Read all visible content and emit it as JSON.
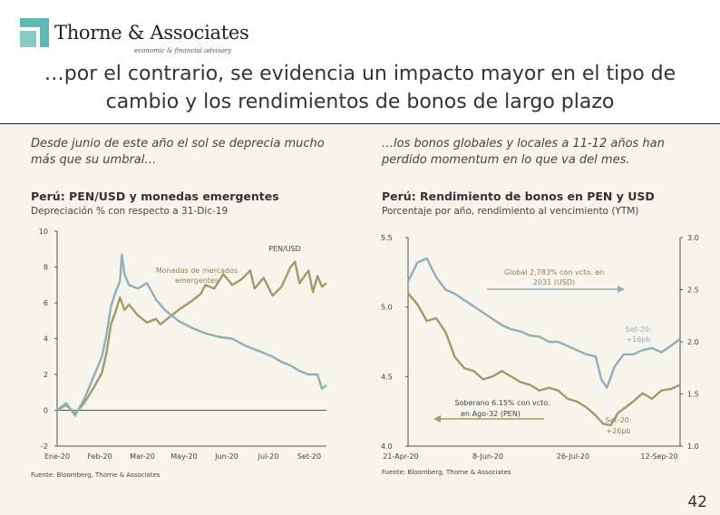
{
  "header": {
    "logo_name": "Thorne & Associates",
    "logo_tagline": "economic & financial advisory",
    "title_line1": "…por el contrario, se evidencia un impacto mayor en el tipo de",
    "title_line2": "cambio y los rendimientos de bonos de largo plazo"
  },
  "left": {
    "lead": "Desde junio de este año el sol se deprecia mucho más que su umbral…",
    "chart_title": "Perú: PEN/USD y monedas emergentes",
    "chart_subtitle": "Depreciación % con respecto a 31-Dic-19",
    "source": "Fuente: Bloomberg, Thorne & Associates"
  },
  "right": {
    "lead": "…los bonos globales y locales a 11-12 años han perdido momentum en lo que va del mes.",
    "chart_title": "Perú: Rendimiento de bonos en PEN y USD",
    "chart_subtitle": "Porcentaje por año, rendimiento al vencimiento (YTM)",
    "source": "Fuente: Bloomberg, Thorne & Associates"
  },
  "page_number": "42",
  "colors": {
    "olive": "#a39a6b",
    "steel": "#8fb0b8",
    "logo": "#5fb8b4"
  },
  "chart_data": [
    {
      "type": "line",
      "title": "Perú: PEN/USD y monedas emergentes",
      "subtitle": "Depreciación % con respecto a 31-Dic-19",
      "ylim": [
        -2,
        10
      ],
      "yticks": [
        -2,
        0,
        2,
        4,
        6,
        8,
        10
      ],
      "xticks": [
        "Ene-20",
        "Feb-20",
        "Mar-20",
        "May-20",
        "Jun-20",
        "Jul-20",
        "Set-20"
      ],
      "xrange_days": [
        0,
        300
      ],
      "series": [
        {
          "name": "PEN/USD",
          "color": "#a39a6b",
          "points": [
            [
              0,
              0
            ],
            [
              10,
              0.3
            ],
            [
              20,
              -0.2
            ],
            [
              30,
              0.4
            ],
            [
              40,
              1.2
            ],
            [
              50,
              2.1
            ],
            [
              55,
              3.2
            ],
            [
              60,
              4.8
            ],
            [
              65,
              5.5
            ],
            [
              70,
              6.3
            ],
            [
              75,
              5.6
            ],
            [
              80,
              5.9
            ],
            [
              90,
              5.3
            ],
            [
              100,
              4.9
            ],
            [
              110,
              5.1
            ],
            [
              115,
              4.8
            ],
            [
              120,
              5.0
            ],
            [
              135,
              5.6
            ],
            [
              150,
              6.1
            ],
            [
              160,
              6.5
            ],
            [
              165,
              7.0
            ],
            [
              175,
              6.8
            ],
            [
              185,
              7.6
            ],
            [
              195,
              7.0
            ],
            [
              205,
              7.3
            ],
            [
              215,
              7.8
            ],
            [
              220,
              6.8
            ],
            [
              230,
              7.4
            ],
            [
              240,
              6.4
            ],
            [
              250,
              6.9
            ],
            [
              260,
              8.0
            ],
            [
              265,
              8.3
            ],
            [
              270,
              7.1
            ],
            [
              280,
              7.8
            ],
            [
              285,
              6.6
            ],
            [
              290,
              7.5
            ],
            [
              295,
              6.9
            ],
            [
              300,
              7.1
            ]
          ]
        },
        {
          "name": "Monedas de mercados emergentes",
          "color": "#8fb0b8",
          "points": [
            [
              0,
              0
            ],
            [
              10,
              0.4
            ],
            [
              20,
              -0.3
            ],
            [
              30,
              0.6
            ],
            [
              40,
              1.8
            ],
            [
              50,
              3.0
            ],
            [
              55,
              4.2
            ],
            [
              60,
              5.8
            ],
            [
              65,
              6.6
            ],
            [
              70,
              7.2
            ],
            [
              72,
              8.7
            ],
            [
              75,
              7.6
            ],
            [
              80,
              7.0
            ],
            [
              90,
              6.8
            ],
            [
              100,
              7.1
            ],
            [
              110,
              6.2
            ],
            [
              120,
              5.6
            ],
            [
              135,
              5.0
            ],
            [
              150,
              4.6
            ],
            [
              165,
              4.3
            ],
            [
              180,
              4.1
            ],
            [
              195,
              4.0
            ],
            [
              210,
              3.6
            ],
            [
              225,
              3.3
            ],
            [
              240,
              3.0
            ],
            [
              250,
              2.7
            ],
            [
              260,
              2.5
            ],
            [
              270,
              2.2
            ],
            [
              280,
              2.0
            ],
            [
              290,
              2.0
            ],
            [
              295,
              1.2
            ],
            [
              300,
              1.4
            ]
          ]
        }
      ]
    },
    {
      "type": "line",
      "title": "Perú: Rendimiento de bonos en PEN y USD",
      "subtitle": "Porcentaje por año, rendimiento al vencimiento (YTM)",
      "y_left": {
        "ylim": [
          4.0,
          5.5
        ],
        "ticks": [
          4.0,
          4.5,
          5.0,
          5.5
        ]
      },
      "y_right": {
        "ylim": [
          1.0,
          3.0
        ],
        "ticks": [
          1.0,
          1.5,
          2.0,
          2.5,
          3.0
        ]
      },
      "xticks": [
        "21-Apr-20",
        "8-Jun-20",
        "26-Jul-20",
        "12-Sep-20"
      ],
      "xrange_days": [
        0,
        145
      ],
      "annotations": [
        "Global 2,783% con vcto. en 2031 (USD)",
        "Set-20: +16pb",
        "Soberano 6.15% con vcto. en Ago-32 (PEN)",
        "Set-20: +26pb"
      ],
      "series": [
        {
          "name": "Global 2,783% con vcto. en 2031 (USD)",
          "axis": "right",
          "color": "#8fb0b8",
          "points": [
            [
              0,
              2.58
            ],
            [
              5,
              2.76
            ],
            [
              10,
              2.8
            ],
            [
              15,
              2.62
            ],
            [
              20,
              2.5
            ],
            [
              25,
              2.46
            ],
            [
              30,
              2.4
            ],
            [
              35,
              2.34
            ],
            [
              40,
              2.28
            ],
            [
              45,
              2.22
            ],
            [
              50,
              2.16
            ],
            [
              55,
              2.12
            ],
            [
              60,
              2.1
            ],
            [
              65,
              2.06
            ],
            [
              70,
              2.05
            ],
            [
              75,
              2.0
            ],
            [
              80,
              2.0
            ],
            [
              85,
              1.96
            ],
            [
              90,
              1.92
            ],
            [
              95,
              1.88
            ],
            [
              100,
              1.86
            ],
            [
              103,
              1.64
            ],
            [
              106,
              1.56
            ],
            [
              110,
              1.76
            ],
            [
              115,
              1.88
            ],
            [
              120,
              1.88
            ],
            [
              125,
              1.92
            ],
            [
              130,
              1.94
            ],
            [
              135,
              1.9
            ],
            [
              140,
              1.96
            ],
            [
              145,
              2.03
            ]
          ]
        },
        {
          "name": "Soberano 6.15% con vcto. en Ago-32 (PEN)",
          "axis": "left",
          "color": "#a39a6b",
          "points": [
            [
              0,
              5.1
            ],
            [
              5,
              5.02
            ],
            [
              10,
              4.9
            ],
            [
              15,
              4.92
            ],
            [
              20,
              4.82
            ],
            [
              25,
              4.64
            ],
            [
              30,
              4.56
            ],
            [
              35,
              4.54
            ],
            [
              40,
              4.48
            ],
            [
              45,
              4.5
            ],
            [
              50,
              4.54
            ],
            [
              55,
              4.5
            ],
            [
              60,
              4.46
            ],
            [
              65,
              4.44
            ],
            [
              70,
              4.4
            ],
            [
              75,
              4.42
            ],
            [
              80,
              4.4
            ],
            [
              85,
              4.34
            ],
            [
              90,
              4.32
            ],
            [
              95,
              4.28
            ],
            [
              100,
              4.22
            ],
            [
              104,
              4.16
            ],
            [
              108,
              4.15
            ],
            [
              112,
              4.24
            ],
            [
              116,
              4.28
            ],
            [
              120,
              4.32
            ],
            [
              125,
              4.38
            ],
            [
              130,
              4.34
            ],
            [
              135,
              4.4
            ],
            [
              140,
              4.41
            ],
            [
              145,
              4.44
            ]
          ]
        }
      ]
    }
  ]
}
